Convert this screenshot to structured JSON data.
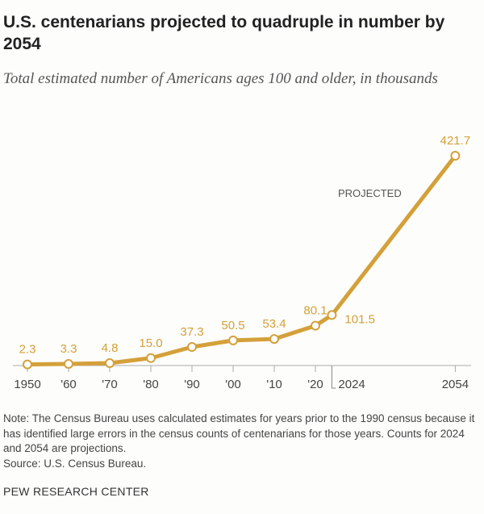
{
  "title": "U.S. centenarians projected to quadruple in number by 2054",
  "subtitle": "Total estimated number of Americans ages 100 and older, in thousands",
  "chart_data": {
    "type": "line",
    "title": "U.S. centenarians projected to quadruple in number by 2054",
    "subtitle": "Total estimated number of Americans ages 100 and older, in thousands",
    "x": [
      1950,
      1960,
      1970,
      1980,
      1990,
      2000,
      2010,
      2020,
      2024,
      2054
    ],
    "values": [
      2.3,
      3.3,
      4.8,
      15.0,
      37.3,
      50.5,
      53.4,
      80.1,
      101.5,
      421.7
    ],
    "labels": [
      "2.3",
      "3.3",
      "4.8",
      "15.0",
      "37.3",
      "50.5",
      "53.4",
      "80.1",
      "101.5",
      "421.7"
    ],
    "x_tick_labels": [
      "1950",
      "'60",
      "'70",
      "'80",
      "'90",
      "'00",
      "'10",
      "'20",
      "2024",
      "2054"
    ],
    "annotation": "PROJECTED",
    "ylim": [
      0,
      421.7
    ],
    "grid": false,
    "color": "#d4a03a"
  },
  "note": "Note: The Census Bureau uses calculated estimates for years prior to the 1990 census because it has identified large errors in the census counts of centenarians for those years. Counts for 2024 and 2054 are projections.",
  "source": "Source: U.S. Census Bureau.",
  "brand": "PEW RESEARCH CENTER"
}
